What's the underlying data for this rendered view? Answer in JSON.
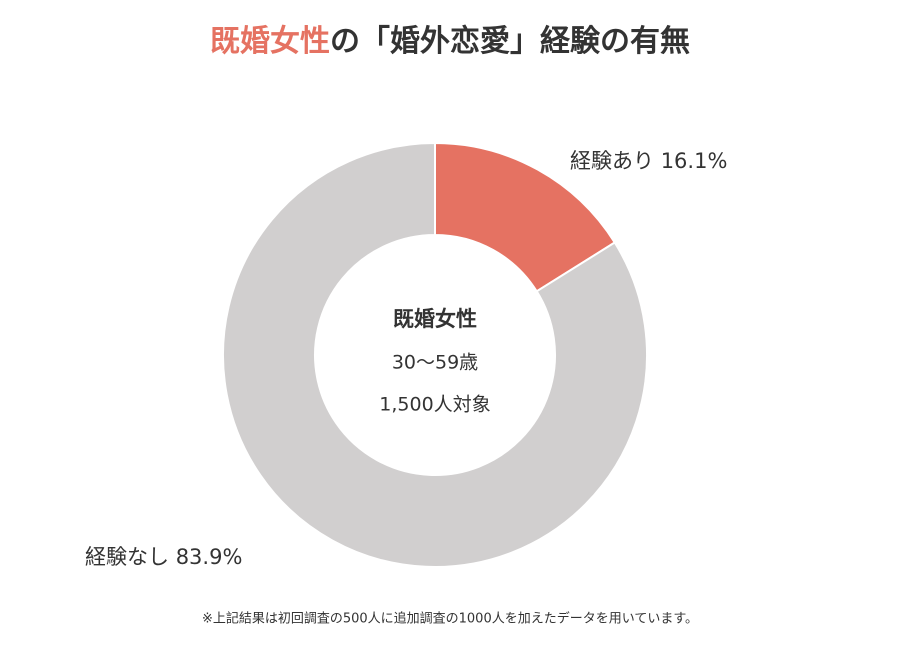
{
  "chart_data": {
    "type": "donut",
    "title": {
      "highlight": "既婚女性",
      "rest": "の「婚外恋愛」経験の有無"
    },
    "center_text": [
      "既婚女性",
      "30〜59歳",
      "1,500人対象"
    ],
    "categories": [
      "経験あり",
      "経験なし"
    ],
    "values": [
      16.1,
      83.9
    ],
    "value_labels": [
      "16.1%",
      "83.9%"
    ],
    "colors": [
      "#e57262",
      "#d1cfcf"
    ],
    "highlight_color": "#e57262",
    "footnote": "※上記結果は初回調査の500人に追加調査の1000人を加えたデータを用いています。"
  }
}
